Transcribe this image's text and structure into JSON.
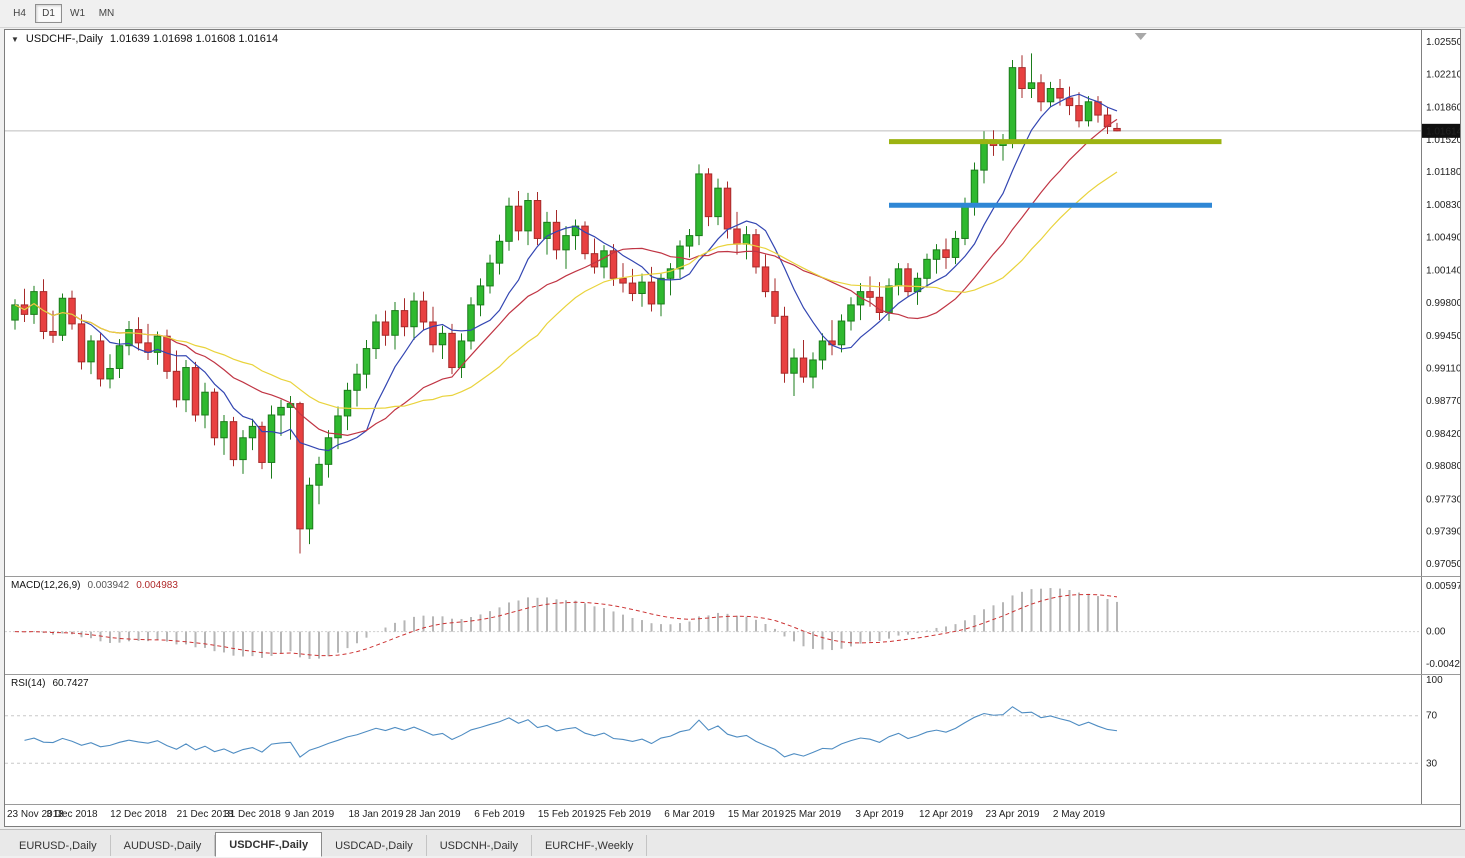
{
  "toolbar": {
    "timeframes": [
      {
        "label": "H4",
        "active": false
      },
      {
        "label": "D1",
        "active": true
      },
      {
        "label": "W1",
        "active": false
      },
      {
        "label": "MN",
        "active": false
      }
    ]
  },
  "chart": {
    "title": {
      "symbol": "USDCHF-,Daily",
      "ohlc_text": "1.01639 1.01698 1.01608 1.01614"
    }
  },
  "macd": {
    "name": "MACD(12,26,9)",
    "value_main": "0.003942",
    "value_signal": "0.004983"
  },
  "rsi": {
    "name": "RSI(14)",
    "value": "60.7427"
  },
  "tabs": [
    {
      "label": "EURUSD-,Daily",
      "active": false
    },
    {
      "label": "AUDUSD-,Daily",
      "active": false
    },
    {
      "label": "USDCHF-,Daily",
      "active": true
    },
    {
      "label": "USDCAD-,Daily",
      "active": false
    },
    {
      "label": "USDCNH-,Daily",
      "active": false
    },
    {
      "label": "EURCHF-,Weekly",
      "active": false
    }
  ],
  "chart_data": {
    "type": "candlestick",
    "symbol": "USDCHF-",
    "timeframe": "Daily",
    "last_bar_ohlc": {
      "open": 1.01639,
      "high": 1.01698,
      "low": 1.01608,
      "close": 1.01614
    },
    "current_price": 1.01614,
    "price_axis": {
      "min": 0.9705,
      "max": 1.0255,
      "ticks": [
        1.0255,
        1.0221,
        1.0186,
        1.0152,
        1.0118,
        1.0083,
        1.0049,
        1.0014,
        0.998,
        0.9945,
        0.9911,
        0.9877,
        0.9842,
        0.9808,
        0.9773,
        0.9739,
        0.9705
      ]
    },
    "x_axis": {
      "labels": [
        {
          "text": "23 Nov 2018",
          "index": 0
        },
        {
          "text": "3 Dec 2018",
          "index": 6
        },
        {
          "text": "12 Dec 2018",
          "index": 13
        },
        {
          "text": "21 Dec 2018",
          "index": 20
        },
        {
          "text": "31 Dec 2018",
          "index": 25
        },
        {
          "text": "9 Jan 2019",
          "index": 31
        },
        {
          "text": "18 Jan 2019",
          "index": 38
        },
        {
          "text": "28 Jan 2019",
          "index": 44
        },
        {
          "text": "6 Feb 2019",
          "index": 51
        },
        {
          "text": "15 Feb 2019",
          "index": 58
        },
        {
          "text": "25 Feb 2019",
          "index": 64
        },
        {
          "text": "6 Mar 2019",
          "index": 71
        },
        {
          "text": "15 Mar 2019",
          "index": 78
        },
        {
          "text": "25 Mar 2019",
          "index": 84
        },
        {
          "text": "3 Apr 2019",
          "index": 91
        },
        {
          "text": "12 Apr 2019",
          "index": 98
        },
        {
          "text": "23 Apr 2019",
          "index": 105
        },
        {
          "text": "2 May 2019",
          "index": 112
        }
      ]
    },
    "candles": [
      [
        0.9962,
        0.9984,
        0.9952,
        0.9978
      ],
      [
        0.9978,
        0.9995,
        0.996,
        0.9968
      ],
      [
        0.9968,
        0.9998,
        0.9958,
        0.9992
      ],
      [
        0.9992,
        1.0005,
        0.9942,
        0.995
      ],
      [
        0.995,
        0.9972,
        0.9938,
        0.9946
      ],
      [
        0.9946,
        0.999,
        0.994,
        0.9985
      ],
      [
        0.9985,
        0.9993,
        0.9952,
        0.9958
      ],
      [
        0.9958,
        0.9968,
        0.991,
        0.9918
      ],
      [
        0.9918,
        0.9946,
        0.9905,
        0.994
      ],
      [
        0.994,
        0.9948,
        0.9892,
        0.99
      ],
      [
        0.99,
        0.9926,
        0.989,
        0.9911
      ],
      [
        0.9911,
        0.9942,
        0.9901,
        0.9935
      ],
      [
        0.9935,
        0.9961,
        0.9925,
        0.9952
      ],
      [
        0.9952,
        0.9965,
        0.993,
        0.9938
      ],
      [
        0.9938,
        0.9958,
        0.992,
        0.9928
      ],
      [
        0.9928,
        0.995,
        0.9915,
        0.9945
      ],
      [
        0.9945,
        0.9952,
        0.99,
        0.9908
      ],
      [
        0.9908,
        0.993,
        0.987,
        0.9878
      ],
      [
        0.9878,
        0.992,
        0.9865,
        0.9912
      ],
      [
        0.9912,
        0.9918,
        0.9855,
        0.9862
      ],
      [
        0.9862,
        0.9896,
        0.9848,
        0.9886
      ],
      [
        0.9886,
        0.989,
        0.983,
        0.9838
      ],
      [
        0.9838,
        0.9862,
        0.982,
        0.9855
      ],
      [
        0.9855,
        0.986,
        0.9808,
        0.9815
      ],
      [
        0.9815,
        0.9846,
        0.98,
        0.9838
      ],
      [
        0.9838,
        0.9858,
        0.9825,
        0.985
      ],
      [
        0.985,
        0.9855,
        0.9805,
        0.9812
      ],
      [
        0.9812,
        0.9872,
        0.9795,
        0.9862
      ],
      [
        0.9862,
        0.9878,
        0.984,
        0.987
      ],
      [
        0.987,
        0.9882,
        0.9836,
        0.9874
      ],
      [
        0.9874,
        0.9876,
        0.9716,
        0.9742
      ],
      [
        0.9742,
        0.9796,
        0.9726,
        0.9788
      ],
      [
        0.9788,
        0.9818,
        0.9768,
        0.981
      ],
      [
        0.981,
        0.9846,
        0.9796,
        0.9838
      ],
      [
        0.9838,
        0.9871,
        0.9826,
        0.9861
      ],
      [
        0.9861,
        0.9896,
        0.9846,
        0.9888
      ],
      [
        0.9888,
        0.9916,
        0.9871,
        0.9905
      ],
      [
        0.9905,
        0.9941,
        0.989,
        0.9932
      ],
      [
        0.9932,
        0.9968,
        0.9921,
        0.996
      ],
      [
        0.996,
        0.9972,
        0.9935,
        0.9946
      ],
      [
        0.9946,
        0.9981,
        0.9931,
        0.9972
      ],
      [
        0.9972,
        0.9985,
        0.9945,
        0.9955
      ],
      [
        0.9955,
        0.9991,
        0.9941,
        0.9982
      ],
      [
        0.9982,
        0.9992,
        0.9952,
        0.996
      ],
      [
        0.996,
        0.9976,
        0.9928,
        0.9936
      ],
      [
        0.9936,
        0.9956,
        0.9921,
        0.9948
      ],
      [
        0.9948,
        0.9958,
        0.9905,
        0.9912
      ],
      [
        0.9912,
        0.9948,
        0.9901,
        0.994
      ],
      [
        0.994,
        0.9986,
        0.9931,
        0.9978
      ],
      [
        0.9978,
        1.0006,
        0.9966,
        0.9998
      ],
      [
        0.9998,
        1.0031,
        0.999,
        1.0022
      ],
      [
        1.0022,
        1.0052,
        1.001,
        1.0045
      ],
      [
        1.0045,
        1.0091,
        1.0035,
        1.0082
      ],
      [
        1.0082,
        1.0098,
        1.0046,
        1.0056
      ],
      [
        1.0056,
        1.0096,
        1.0041,
        1.0088
      ],
      [
        1.0088,
        1.0097,
        1.0041,
        1.0048
      ],
      [
        1.0048,
        1.0076,
        1.0031,
        1.0065
      ],
      [
        1.0065,
        1.0078,
        1.0026,
        1.0036
      ],
      [
        1.0036,
        1.0061,
        1.0016,
        1.0051
      ],
      [
        1.0051,
        1.0068,
        1.0036,
        1.0061
      ],
      [
        1.0061,
        1.0066,
        1.0026,
        1.0032
      ],
      [
        1.0032,
        1.0048,
        1.0011,
        1.0018
      ],
      [
        1.0018,
        1.0041,
        1.0006,
        1.0035
      ],
      [
        1.0035,
        1.0042,
        0.9998,
        1.0006
      ],
      [
        1.0006,
        1.0022,
        0.9991,
        1.0001
      ],
      [
        1.0001,
        1.0016,
        0.9982,
        0.999
      ],
      [
        0.999,
        1.0011,
        0.9976,
        1.0002
      ],
      [
        1.0002,
        1.0018,
        0.9971,
        0.9979
      ],
      [
        0.9979,
        1.0011,
        0.9966,
        1.0006
      ],
      [
        1.0006,
        1.0022,
        0.9988,
        1.0016
      ],
      [
        1.0016,
        1.0046,
        1.0006,
        1.004
      ],
      [
        1.004,
        1.0058,
        1.0028,
        1.0051
      ],
      [
        1.0051,
        1.0126,
        1.0041,
        1.0116
      ],
      [
        1.0116,
        1.0122,
        1.0061,
        1.0071
      ],
      [
        1.0071,
        1.0111,
        1.0062,
        1.0101
      ],
      [
        1.0101,
        1.0108,
        1.0048,
        1.0058
      ],
      [
        1.0058,
        1.0076,
        1.0031,
        1.0042
      ],
      [
        1.0042,
        1.0061,
        1.0026,
        1.0052
      ],
      [
        1.0052,
        1.0058,
        1.0011,
        1.0018
      ],
      [
        1.0018,
        1.0031,
        0.9986,
        0.9992
      ],
      [
        0.9992,
        1.0006,
        0.9958,
        0.9966
      ],
      [
        0.9966,
        0.9976,
        0.9896,
        0.9906
      ],
      [
        0.9906,
        0.9932,
        0.9882,
        0.9922
      ],
      [
        0.9922,
        0.9941,
        0.9896,
        0.9902
      ],
      [
        0.9902,
        0.9928,
        0.989,
        0.992
      ],
      [
        0.992,
        0.9948,
        0.991,
        0.994
      ],
      [
        0.994,
        0.9962,
        0.9925,
        0.9936
      ],
      [
        0.9936,
        0.9968,
        0.9928,
        0.9961
      ],
      [
        0.9961,
        0.9986,
        0.9951,
        0.9978
      ],
      [
        0.9978,
        1.0001,
        0.9962,
        0.9992
      ],
      [
        0.9992,
        1.0008,
        0.9976,
        0.9986
      ],
      [
        0.9986,
        1.0002,
        0.9962,
        0.997
      ],
      [
        0.997,
        1.0006,
        0.9961,
        0.9998
      ],
      [
        0.9998,
        1.0022,
        0.9988,
        1.0016
      ],
      [
        1.0016,
        1.0022,
        0.9986,
        0.9992
      ],
      [
        0.9992,
        1.0012,
        0.9978,
        1.0006
      ],
      [
        1.0006,
        1.0032,
        0.9996,
        1.0026
      ],
      [
        1.0026,
        1.0042,
        1.0011,
        1.0036
      ],
      [
        1.0036,
        1.0048,
        1.0016,
        1.0028
      ],
      [
        1.0028,
        1.0056,
        1.0021,
        1.0048
      ],
      [
        1.0048,
        1.0091,
        1.0041,
        1.0082
      ],
      [
        1.0082,
        1.0128,
        1.0072,
        1.012
      ],
      [
        1.012,
        1.0161,
        1.0106,
        1.0152
      ],
      [
        1.0152,
        1.0162,
        1.0135,
        1.0146
      ],
      [
        1.0146,
        1.0158,
        1.013,
        1.0151
      ],
      [
        1.0151,
        1.0236,
        1.0143,
        1.0228
      ],
      [
        1.0228,
        1.0241,
        1.0196,
        1.0206
      ],
      [
        1.0206,
        1.0243,
        1.0196,
        1.0212
      ],
      [
        1.0212,
        1.0221,
        1.0182,
        1.0192
      ],
      [
        1.0192,
        1.0213,
        1.0186,
        1.0206
      ],
      [
        1.0206,
        1.0216,
        1.0188,
        1.0196
      ],
      [
        1.0196,
        1.0208,
        1.0178,
        1.0188
      ],
      [
        1.0188,
        1.0202,
        1.0165,
        1.0172
      ],
      [
        1.0172,
        1.0198,
        1.0166,
        1.0192
      ],
      [
        1.0192,
        1.0198,
        1.017,
        1.0178
      ],
      [
        1.0178,
        1.0186,
        1.0158,
        1.0166
      ],
      [
        1.01639,
        1.01698,
        1.01608,
        1.01614
      ]
    ],
    "colors": {
      "up_fill": "#2fb92f",
      "up_border": "#1b7c1b",
      "down_fill": "#e84040",
      "down_border": "#a62a2a",
      "price_line": "#bdbdbd",
      "badge_bg": "#101010",
      "badge_text": "#ffffff"
    },
    "moving_averages": [
      {
        "name": "ma-fast-line",
        "period": 8,
        "color": "#3346b2"
      },
      {
        "name": "ma-mid-line",
        "period": 17,
        "color": "#c03544"
      },
      {
        "name": "ma-slow-line",
        "period": 26,
        "color": "#e9d33c"
      }
    ],
    "objects": [
      {
        "type": "hline",
        "name": "resistance-line",
        "price": 1.015,
        "color": "#9cb312",
        "width": 5,
        "from_index": 92,
        "to_index": 127
      },
      {
        "type": "hline",
        "name": "support-line",
        "price": 1.0083,
        "color": "#2f87d5",
        "width": 5,
        "from_index": 92,
        "to_index": 126
      }
    ],
    "macd": {
      "params": [
        12,
        26,
        9
      ],
      "display_values": [
        0.003942,
        0.004983
      ],
      "range": [
        -0.005,
        0.0066
      ],
      "ticks": [
        {
          "label": "0.00597",
          "value": 0.00597
        },
        {
          "label": "0.00",
          "value": 0.0
        },
        {
          "label": "-0.004243",
          "value": -0.004243
        }
      ],
      "histogram_color": "#b6b6b6",
      "signal_color": "#cc3333"
    },
    "rsi": {
      "params": [
        14
      ],
      "display_value": 60.7427,
      "range": [
        0,
        100
      ],
      "levels": [
        70,
        30
      ],
      "ticks": [
        {
          "label": "100",
          "value": 100
        },
        {
          "label": "70",
          "value": 70
        },
        {
          "label": "30",
          "value": 30
        }
      ],
      "color": "#4e8cc2"
    }
  }
}
